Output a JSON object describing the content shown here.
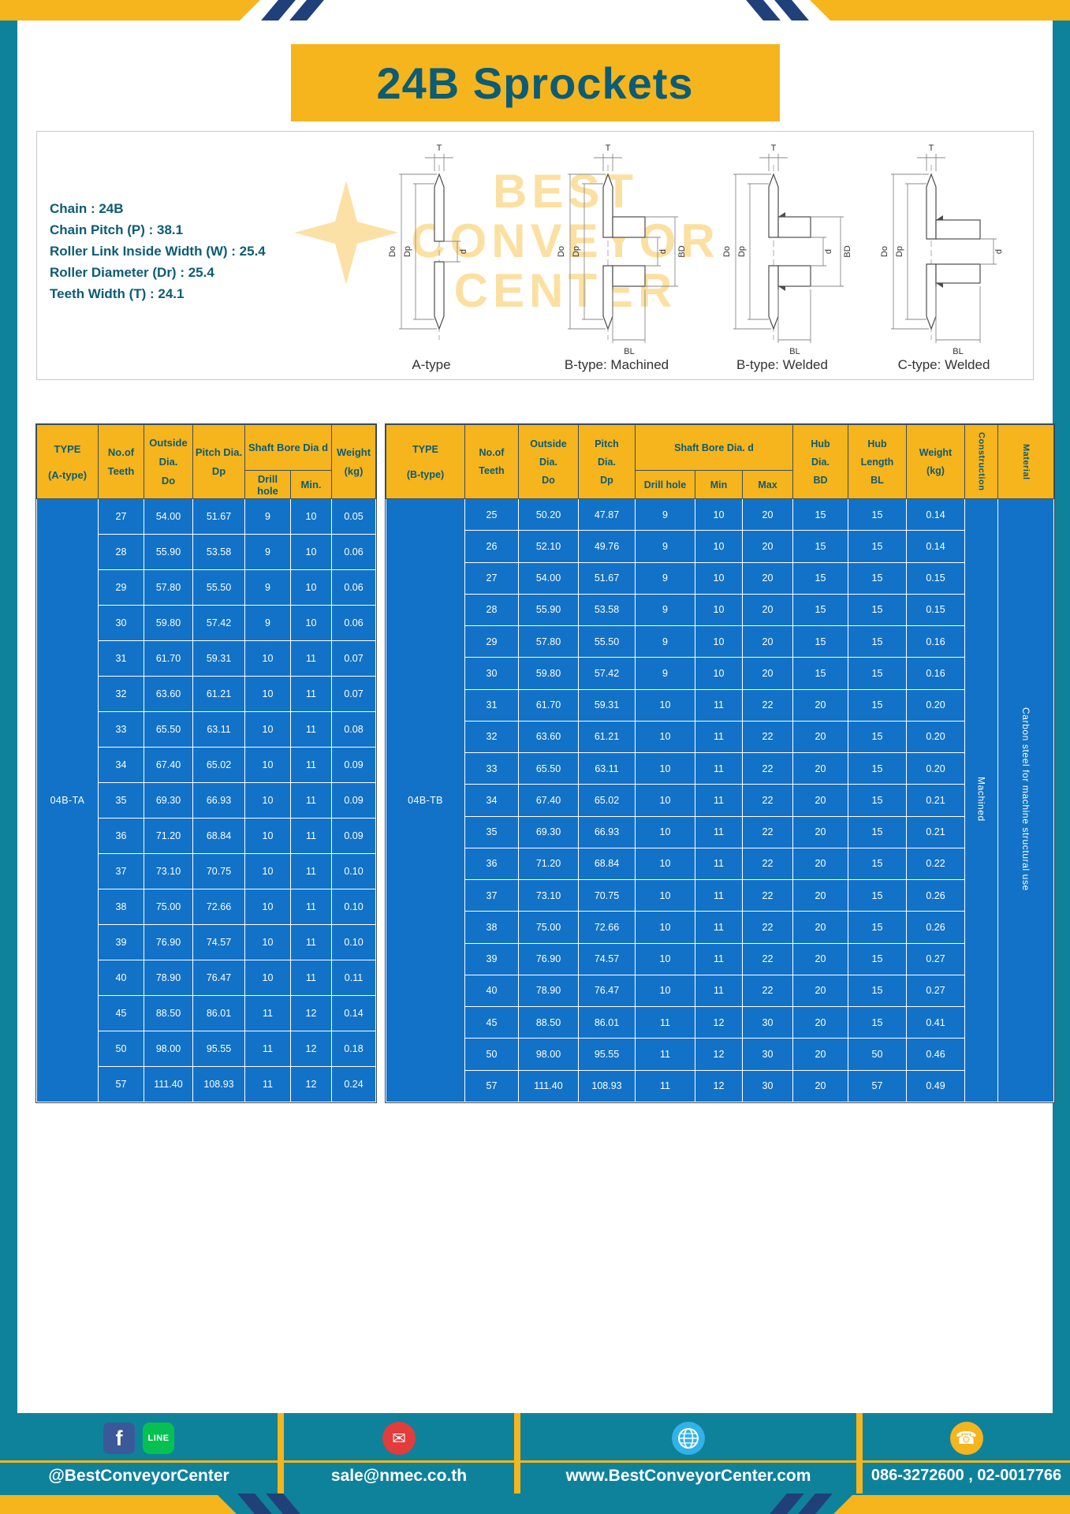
{
  "page": {
    "title": "24B Sprockets"
  },
  "colors": {
    "teal": "#0f829b",
    "yellow": "#f6b41d",
    "table_blue": "#1272c8",
    "navy": "#20407a",
    "heading_text": "#0b5c74"
  },
  "diagram_panel": {
    "specs": [
      "Chain : 24B",
      "Chain Pitch (P) : 38.1",
      "Roller Link Inside Width (W) : 25.4",
      "Roller Diameter (Dr) : 25.4",
      "Teeth Width (T) : 24.1"
    ],
    "watermark": [
      "BEST",
      "CONVEYOR",
      "CENTER"
    ],
    "diagrams": [
      {
        "caption": "A-type",
        "dims": {
          "t": "T",
          "do": "Do",
          "dp": "Dp",
          "d": "d"
        }
      },
      {
        "caption": "B-type: Machined",
        "dims": {
          "t": "T",
          "do": "Do",
          "dp": "Dp",
          "d": "d",
          "bd": "BD",
          "bl": "BL"
        }
      },
      {
        "caption": "B-type: Welded",
        "dims": {
          "t": "T",
          "do": "Do",
          "dp": "Dp",
          "d": "d",
          "bd": "BD",
          "bl": "BL"
        }
      },
      {
        "caption": "C-type: Welded",
        "dims": {
          "t": "T",
          "do": "Do",
          "dp": "Dp",
          "d": "d",
          "bl": "BL"
        }
      }
    ]
  },
  "tables": {
    "a": {
      "type_label": "04B-TA",
      "headers": {
        "type_lines": [
          "TYPE",
          "(A-type)"
        ],
        "teeth_lines": [
          "No.of",
          "Teeth"
        ],
        "outside_lines": [
          "Outside",
          "Dia.",
          "Do"
        ],
        "pitch_lines": [
          "Pitch Dia.",
          "Dp"
        ],
        "bore_group": "Shaft Bore Dia d",
        "drill": "Drill hole",
        "min": "Min.",
        "weight_lines": [
          "Weight",
          "(kg)"
        ]
      },
      "rows": [
        [
          "27",
          "54.00",
          "51.67",
          "9",
          "10",
          "0.05"
        ],
        [
          "28",
          "55.90",
          "53.58",
          "9",
          "10",
          "0.06"
        ],
        [
          "29",
          "57.80",
          "55.50",
          "9",
          "10",
          "0.06"
        ],
        [
          "30",
          "59.80",
          "57.42",
          "9",
          "10",
          "0.06"
        ],
        [
          "31",
          "61.70",
          "59.31",
          "10",
          "11",
          "0.07"
        ],
        [
          "32",
          "63.60",
          "61.21",
          "10",
          "11",
          "0.07"
        ],
        [
          "33",
          "65.50",
          "63.11",
          "10",
          "11",
          "0.08"
        ],
        [
          "34",
          "67.40",
          "65.02",
          "10",
          "11",
          "0.09"
        ],
        [
          "35",
          "69.30",
          "66.93",
          "10",
          "11",
          "0.09"
        ],
        [
          "36",
          "71.20",
          "68.84",
          "10",
          "11",
          "0.09"
        ],
        [
          "37",
          "73.10",
          "70.75",
          "10",
          "11",
          "0.10"
        ],
        [
          "38",
          "75.00",
          "72.66",
          "10",
          "11",
          "0.10"
        ],
        [
          "39",
          "76.90",
          "74.57",
          "10",
          "11",
          "0.10"
        ],
        [
          "40",
          "78.90",
          "76.47",
          "10",
          "11",
          "0.11"
        ],
        [
          "45",
          "88.50",
          "86.01",
          "11",
          "12",
          "0.14"
        ],
        [
          "50",
          "98.00",
          "95.55",
          "11",
          "12",
          "0.18"
        ],
        [
          "57",
          "111.40",
          "108.93",
          "11",
          "12",
          "0.24"
        ]
      ]
    },
    "b": {
      "type_label": "04B-TB",
      "construction": "Machined",
      "material": "Carbon steel for machine structural use",
      "headers": {
        "type_lines": [
          "TYPE",
          "(B-type)"
        ],
        "teeth_lines": [
          "No.of",
          "Teeth"
        ],
        "outside_lines": [
          "Outside",
          "Dia.",
          "Do"
        ],
        "pitch_lines": [
          "Pitch",
          "Dia.",
          "Dp"
        ],
        "bore_group": "Shaft Bore Dia. d",
        "drill": "Drill hole",
        "min": "Min",
        "max": "Max",
        "hub_dia_lines": [
          "Hub",
          "Dia.",
          "BD"
        ],
        "hub_len_lines": [
          "Hub",
          "Length",
          "BL"
        ],
        "weight_lines": [
          "Weight",
          "(kg)"
        ],
        "construction": "Construction",
        "material": "Material"
      },
      "rows": [
        [
          "25",
          "50.20",
          "47.87",
          "9",
          "10",
          "20",
          "15",
          "15",
          "0.14"
        ],
        [
          "26",
          "52.10",
          "49.76",
          "9",
          "10",
          "20",
          "15",
          "15",
          "0.14"
        ],
        [
          "27",
          "54.00",
          "51.67",
          "9",
          "10",
          "20",
          "15",
          "15",
          "0.15"
        ],
        [
          "28",
          "55.90",
          "53.58",
          "9",
          "10",
          "20",
          "15",
          "15",
          "0.15"
        ],
        [
          "29",
          "57.80",
          "55.50",
          "9",
          "10",
          "20",
          "15",
          "15",
          "0.16"
        ],
        [
          "30",
          "59.80",
          "57.42",
          "9",
          "10",
          "20",
          "15",
          "15",
          "0.16"
        ],
        [
          "31",
          "61.70",
          "59.31",
          "10",
          "11",
          "22",
          "20",
          "15",
          "0.20"
        ],
        [
          "32",
          "63.60",
          "61.21",
          "10",
          "11",
          "22",
          "20",
          "15",
          "0.20"
        ],
        [
          "33",
          "65.50",
          "63.11",
          "10",
          "11",
          "22",
          "20",
          "15",
          "0.20"
        ],
        [
          "34",
          "67.40",
          "65.02",
          "10",
          "11",
          "22",
          "20",
          "15",
          "0.21"
        ],
        [
          "35",
          "69.30",
          "66.93",
          "10",
          "11",
          "22",
          "20",
          "15",
          "0.21"
        ],
        [
          "36",
          "71.20",
          "68.84",
          "10",
          "11",
          "22",
          "20",
          "15",
          "0.22"
        ],
        [
          "37",
          "73.10",
          "70.75",
          "10",
          "11",
          "22",
          "20",
          "15",
          "0.26"
        ],
        [
          "38",
          "75.00",
          "72.66",
          "10",
          "11",
          "22",
          "20",
          "15",
          "0.26"
        ],
        [
          "39",
          "76.90",
          "74.57",
          "10",
          "11",
          "22",
          "20",
          "15",
          "0.27"
        ],
        [
          "40",
          "78.90",
          "76.47",
          "10",
          "11",
          "22",
          "20",
          "15",
          "0.27"
        ],
        [
          "45",
          "88.50",
          "86.01",
          "11",
          "12",
          "30",
          "20",
          "15",
          "0.41"
        ],
        [
          "50",
          "98.00",
          "95.55",
          "11",
          "12",
          "30",
          "20",
          "50",
          "0.46"
        ],
        [
          "57",
          "111.40",
          "108.93",
          "11",
          "12",
          "30",
          "20",
          "57",
          "0.49"
        ]
      ]
    }
  },
  "footer": {
    "handle": "@BestConveyorCenter",
    "email": "sale@nmec.co.th",
    "website": "www.BestConveyorCenter.com",
    "phone": "086-3272600 , 02-0017766",
    "icons": {
      "facebook": "f",
      "line": "LINE",
      "mail": "✉",
      "phone": "☎"
    }
  }
}
